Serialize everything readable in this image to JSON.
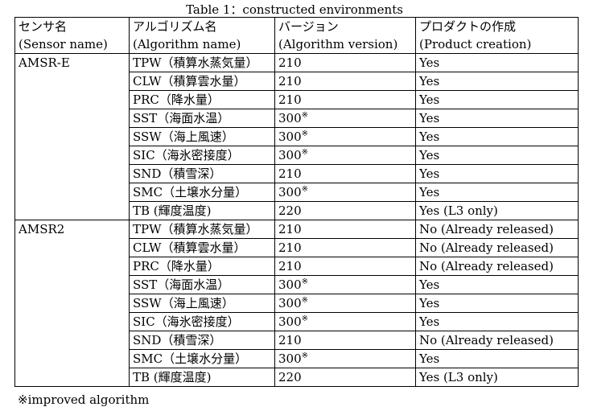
{
  "caption": "Table 1：constructed environments",
  "headers": [
    {
      "jp": "センサ名",
      "en": "(Sensor name)"
    },
    {
      "jp": "アルゴリズム名",
      "en": "(Algorithm name)"
    },
    {
      "jp": "バージョン",
      "en": "(Algorithm version)"
    },
    {
      "jp": "プロダクトの作成",
      "en": "(Product creation)"
    }
  ],
  "groups": [
    {
      "sensor": "AMSR-E",
      "rows": [
        {
          "algorithm": "TPW（積算水蒸気量）",
          "version": "210",
          "mark": "",
          "product": "Yes"
        },
        {
          "algorithm": "CLW（積算雲水量）",
          "version": "210",
          "mark": "",
          "product": "Yes"
        },
        {
          "algorithm": "PRC（降水量）",
          "version": "210",
          "mark": "",
          "product": "Yes"
        },
        {
          "algorithm": "SST（海面水温）",
          "version": "300",
          "mark": "※",
          "product": "Yes"
        },
        {
          "algorithm": "SSW（海上風速）",
          "version": "300",
          "mark": "※",
          "product": "Yes"
        },
        {
          "algorithm": "SIC（海氷密接度）",
          "version": "300",
          "mark": "※",
          "product": "Yes"
        },
        {
          "algorithm": "SND（積雪深）",
          "version": "210",
          "mark": "",
          "product": "Yes"
        },
        {
          "algorithm": "SMC（土壌水分量）",
          "version": "300",
          "mark": "※",
          "product": "Yes"
        },
        {
          "algorithm": "TB (輝度温度)",
          "version": "220",
          "mark": "",
          "product": "Yes (L3 only)"
        }
      ]
    },
    {
      "sensor": "AMSR2",
      "rows": [
        {
          "algorithm": "TPW（積算水蒸気量）",
          "version": "210",
          "mark": "",
          "product": "No (Already released)"
        },
        {
          "algorithm": "CLW（積算雲水量）",
          "version": "210",
          "mark": "",
          "product": "No (Already released)"
        },
        {
          "algorithm": "PRC（降水量）",
          "version": "210",
          "mark": "",
          "product": "No (Already released)"
        },
        {
          "algorithm": "SST（海面水温）",
          "version": "300",
          "mark": "※",
          "product": "Yes"
        },
        {
          "algorithm": "SSW（海上風速）",
          "version": "300",
          "mark": "※",
          "product": "Yes"
        },
        {
          "algorithm": "SIC（海氷密接度）",
          "version": "300",
          "mark": "※",
          "product": "Yes"
        },
        {
          "algorithm": "SND（積雪深）",
          "version": "210",
          "mark": "",
          "product": "No (Already released)"
        },
        {
          "algorithm": "SMC（土壌水分量）",
          "version": "300",
          "mark": "※",
          "product": "Yes"
        },
        {
          "algorithm": "TB (輝度温度)",
          "version": "220",
          "mark": "",
          "product": "Yes (L3 only)"
        }
      ]
    }
  ],
  "footnote": "※improved algorithm"
}
